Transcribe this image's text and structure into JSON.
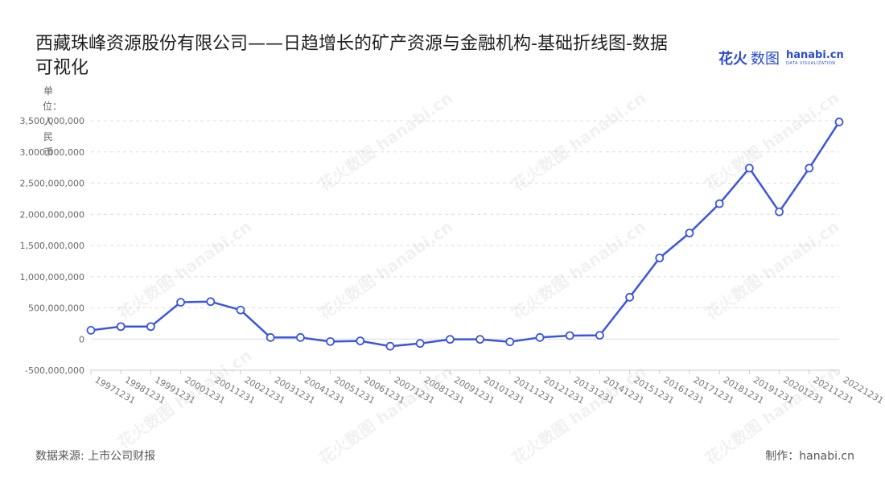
{
  "title": "西藏珠峰资源股份有限公司——日趋增长的矿产资源与金融机构-基础折线图-数据可视化",
  "brand": {
    "logo_text": "花火",
    "logo_cn": "数图",
    "domain": "hanabi.cn",
    "tagline": "DATA VISUALIZATION"
  },
  "footer": {
    "source": "数据来源: 上市公司财报",
    "credit": "制作：hanabi.cn"
  },
  "watermark_text": "花火数图 hanabi.cn",
  "chart_data": {
    "type": "line",
    "title": "西藏珠峰资源股份有限公司——日趋增长的矿产资源与金融机构-基础折线图-数据可视化",
    "ylabel": "单位：人民币",
    "xlabel": "",
    "ylim": [
      -500000000,
      3500000000
    ],
    "yticks": [
      -500000000,
      0,
      500000000,
      1000000000,
      1500000000,
      2000000000,
      2500000000,
      3000000000,
      3500000000
    ],
    "ytick_labels": [
      "-500,000,000",
      "0",
      "500,000,000",
      "1,000,000,000",
      "1,500,000,000",
      "2,000,000,000",
      "2,500,000,000",
      "3,000,000,000",
      "3,500,000,000"
    ],
    "grid": "horizontal dashed",
    "line_color": "#3b55e0",
    "categories": [
      "19971231",
      "19981231",
      "19991231",
      "20001231",
      "20011231",
      "20021231",
      "20031231",
      "20041231",
      "20051231",
      "20061231",
      "20071231",
      "20081231",
      "20091231",
      "20101231",
      "20111231",
      "20121231",
      "20131231",
      "20141231",
      "20151231",
      "20161231",
      "20171231",
      "20181231",
      "20191231",
      "20201231",
      "20211231",
      "20221231"
    ],
    "values": [
      140000000,
      200000000,
      200000000,
      590000000,
      600000000,
      465000000,
      25000000,
      25000000,
      -40000000,
      -30000000,
      -115000000,
      -70000000,
      -5000000,
      -5000000,
      -45000000,
      25000000,
      55000000,
      60000000,
      670000000,
      1300000000,
      1700000000,
      2170000000,
      2740000000,
      2040000000,
      2740000000,
      3480000000
    ]
  }
}
